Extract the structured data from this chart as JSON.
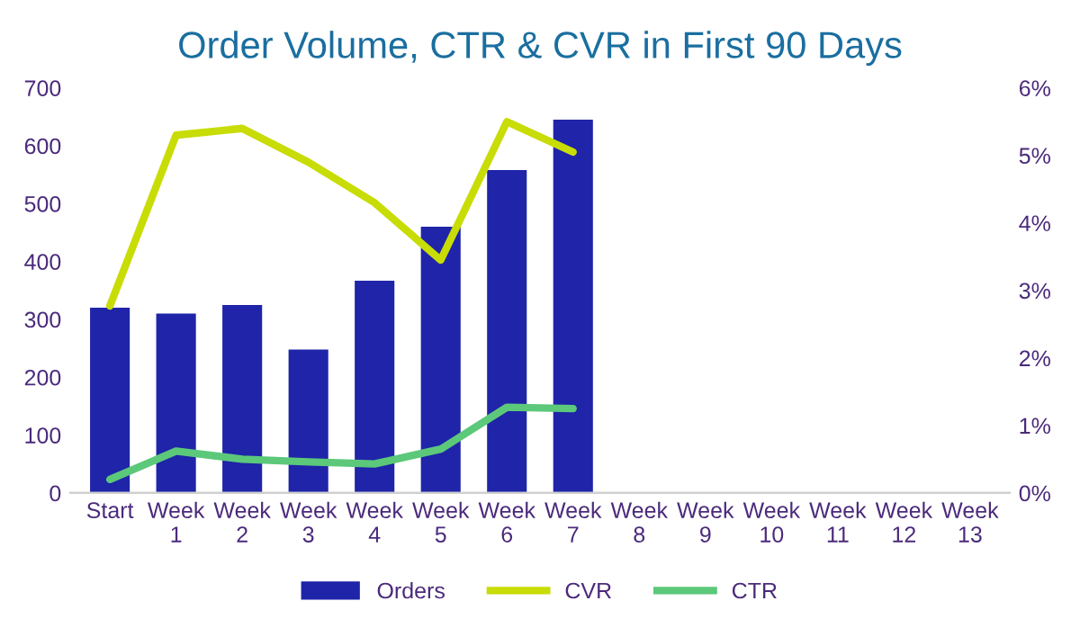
{
  "chart_data": {
    "type": "bar",
    "title": "Order Volume, CTR & CVR in First 90 Days",
    "categories": [
      "Start",
      "Week\n1",
      "Week\n2",
      "Week\n3",
      "Week\n4",
      "Week\n5",
      "Week\n6",
      "Week\n7",
      "Week\n8",
      "Week\n9",
      "Week\n10",
      "Week\n11",
      "Week\n12",
      "Week\n13"
    ],
    "series": [
      {
        "name": "Orders",
        "color": "#1f24a8",
        "values": [
          320,
          310,
          325,
          248,
          367,
          460,
          558,
          645,
          null,
          null,
          null,
          null,
          null,
          null
        ]
      },
      {
        "name": "CVR",
        "type": "line",
        "axis": "y2",
        "color": "#c8dc05",
        "values": [
          2.77,
          5.3,
          5.4,
          4.9,
          4.3,
          3.45,
          5.5,
          5.05,
          null,
          null,
          null,
          null,
          null,
          null
        ]
      },
      {
        "name": "CTR",
        "type": "line",
        "axis": "y2",
        "color": "#5cc87a",
        "values": [
          0.2,
          0.62,
          0.5,
          0.46,
          0.43,
          0.65,
          1.27,
          1.25,
          null,
          null,
          null,
          null,
          null,
          null
        ]
      }
    ],
    "ylim": [
      0,
      700
    ],
    "yticks": [
      0,
      100,
      200,
      300,
      400,
      500,
      600,
      700
    ],
    "y2lim": [
      0,
      6
    ],
    "y2ticks": [
      {
        "value": 0,
        "label": "0%"
      },
      {
        "value": 1,
        "label": "1%"
      },
      {
        "value": 2,
        "label": "2%"
      },
      {
        "value": 3,
        "label": "3%"
      },
      {
        "value": 4,
        "label": "4%"
      },
      {
        "value": 5,
        "label": "5%"
      },
      {
        "value": 6,
        "label": "6%"
      }
    ],
    "grid": false,
    "legend": "bottom",
    "line_style": "solid",
    "marker": "none"
  }
}
